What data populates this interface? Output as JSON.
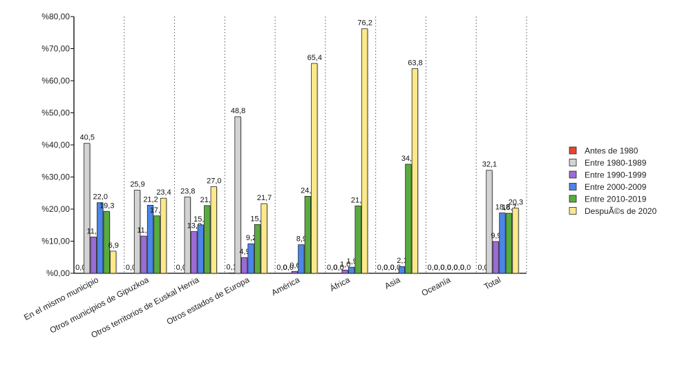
{
  "chart_data": {
    "type": "bar",
    "categories": [
      "En el mismo municipio",
      "Otros municipios de Gipuzkoa",
      "Otros territorios de Euskal Herria",
      "Otros estados de Europa",
      "América",
      "África",
      "Asia",
      "Oceanía",
      "Total"
    ],
    "series": [
      {
        "name": "Antes de 1980",
        "color": "#e8452c",
        "values": [
          0.0,
          0.0,
          0.0,
          0.1,
          0.0,
          0.0,
          0.0,
          0.0,
          0.0
        ],
        "labels": [
          "0,0",
          "0,0",
          "0,0",
          "0,1",
          "0,0",
          "0,0",
          "0,0",
          "0,0",
          "0,0"
        ]
      },
      {
        "name": "Entre 1980-1989",
        "color": "#d3d3d3",
        "values": [
          40.5,
          25.9,
          23.8,
          48.8,
          0.0,
          0.0,
          0.0,
          0.0,
          32.1
        ],
        "labels": [
          "40,5",
          "25,9",
          "23,8",
          "48,8",
          "0,0",
          "0,0",
          "0,0",
          "0,0",
          "32,1"
        ]
      },
      {
        "name": "Entre 1990-1999",
        "color": "#9b6bd6",
        "values": [
          11.3,
          11.6,
          13.0,
          4.9,
          0.6,
          1.0,
          0.0,
          0.0,
          9.9
        ],
        "labels": [
          "11,3",
          "11,6",
          "13,0",
          "4,9",
          "0,6",
          "1,0",
          "0,0",
          "0,0",
          "9,9"
        ]
      },
      {
        "name": "Entre 2000-2009",
        "color": "#4b86e8",
        "values": [
          22.0,
          21.2,
          15.1,
          9.2,
          8.9,
          1.9,
          2.1,
          0.0,
          18.8
        ],
        "labels": [
          "22,0",
          "21,2",
          "15,1",
          "9,2",
          "8,9",
          "1,9",
          "2,1",
          "0,0",
          "18,8"
        ]
      },
      {
        "name": "Entre 2010-2019",
        "color": "#5aab3e",
        "values": [
          19.3,
          17.9,
          21.1,
          15.2,
          24.0,
          21.0,
          34.0,
          0.0,
          18.7
        ],
        "labels": [
          "19,3",
          "17,9",
          "21,1",
          "15,2",
          "24,0",
          "21,0",
          "34,0",
          "0,0",
          "18,7"
        ]
      },
      {
        "name": "DespuÃ©s de 2020",
        "color": "#fbe98a",
        "values": [
          6.9,
          23.4,
          27.0,
          21.7,
          65.4,
          76.2,
          63.8,
          0.0,
          20.3
        ],
        "labels": [
          "6,9",
          "23,4",
          "27,0",
          "21,7",
          "65,4",
          "76,2",
          "63,8",
          "0,0",
          "20,3"
        ]
      }
    ],
    "y_ticks": [
      "%0,00",
      "%10,00",
      "%20,00",
      "%30,00",
      "%40,00",
      "%50,00",
      "%60,00",
      "%70,00",
      "%80,00"
    ],
    "ylim": [
      0,
      80
    ],
    "grid": "vertical dotted separators between categories",
    "legend_position": "right"
  }
}
